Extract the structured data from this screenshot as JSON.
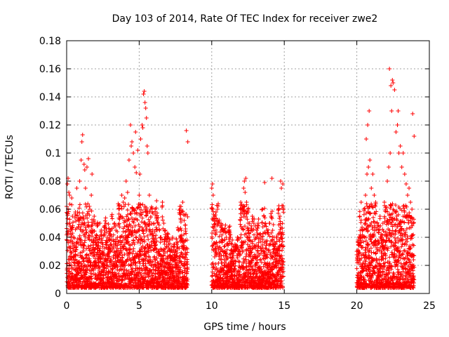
{
  "chart_data": {
    "type": "scatter",
    "title": "Day 103 of 2014, Rate Of TEC Index for receiver zwe2",
    "xlabel": "GPS time / hours",
    "ylabel": "ROTI / TECUs",
    "xlim": [
      0,
      25
    ],
    "ylim": [
      0,
      0.18
    ],
    "x_ticks": [
      "0",
      "5",
      "10",
      "15",
      "20",
      "25"
    ],
    "x_tick_values": [
      0,
      5,
      10,
      15,
      20,
      25
    ],
    "y_ticks": [
      "0",
      "0.02",
      "0.04",
      "0.06",
      "0.08",
      "0.1",
      "0.12",
      "0.14",
      "0.16",
      "0.18"
    ],
    "y_tick_values": [
      0,
      0.02,
      0.04,
      0.06,
      0.08,
      0.1,
      0.12,
      0.14,
      0.16,
      0.18
    ],
    "grid": true,
    "marker": "+",
    "color": "#ff0000",
    "series": [
      {
        "name": "zwe2",
        "x": [
          0.0,
          0.1,
          0.2,
          0.3,
          0.4,
          0.5,
          0.6,
          0.7,
          0.8,
          0.9,
          1.0,
          1.1,
          1.2,
          1.3,
          1.4,
          1.5,
          1.6,
          1.7,
          1.8,
          1.9,
          2.0,
          2.1,
          2.2,
          2.3,
          2.4,
          2.5,
          2.6,
          2.7,
          2.8,
          2.9,
          3.0,
          3.1,
          3.2,
          3.3,
          3.4,
          3.5,
          3.6,
          3.7,
          3.8,
          3.9,
          4.0,
          4.1,
          4.2,
          4.3,
          4.4,
          4.5,
          4.6,
          4.7,
          4.8,
          4.9,
          5.0,
          5.1,
          5.2,
          5.3,
          5.4,
          5.5,
          5.6,
          5.7,
          5.8,
          5.9,
          6.0,
          6.1,
          6.2,
          6.3,
          6.4,
          6.5,
          6.6,
          6.7,
          6.8,
          6.9,
          7.0,
          7.1,
          7.2,
          7.3,
          7.4,
          7.5,
          7.6,
          7.7,
          7.8,
          7.9,
          8.0,
          8.1,
          8.2,
          8.3,
          0.05,
          0.15,
          0.35,
          1.05,
          1.25,
          1.75,
          4.45,
          4.75,
          5.05,
          5.25,
          5.35,
          5.45,
          5.55,
          8.25,
          8.35,
          0.15,
          0.55,
          1.15,
          1.45,
          1.95,
          2.35,
          2.95,
          3.45,
          3.85,
          4.35,
          4.95,
          5.25,
          5.65,
          6.25,
          6.95,
          7.45,
          7.95,
          10.0,
          10.1,
          10.2,
          10.3,
          10.4,
          10.5,
          10.6,
          10.7,
          10.8,
          10.9,
          11.0,
          11.1,
          11.2,
          11.3,
          11.4,
          11.5,
          11.6,
          11.7,
          11.8,
          11.9,
          12.0,
          12.1,
          12.2,
          12.3,
          12.4,
          12.5,
          12.6,
          12.7,
          12.8,
          12.9,
          13.0,
          13.1,
          13.2,
          13.3,
          13.4,
          13.5,
          13.6,
          13.7,
          13.8,
          13.9,
          14.0,
          14.1,
          14.2,
          14.3,
          14.4,
          14.5,
          14.6,
          14.7,
          14.8,
          14.9,
          10.05,
          12.25,
          12.35,
          13.65,
          14.15,
          14.75,
          10.35,
          10.95,
          11.55,
          12.05,
          12.65,
          13.25,
          13.95,
          14.55,
          20.0,
          20.1,
          20.2,
          20.3,
          20.4,
          20.5,
          20.6,
          20.7,
          20.8,
          20.9,
          21.0,
          21.1,
          21.2,
          21.3,
          21.4,
          21.5,
          21.6,
          21.7,
          21.8,
          21.9,
          22.0,
          22.1,
          22.2,
          22.3,
          22.4,
          22.5,
          22.6,
          22.7,
          22.8,
          22.9,
          23.0,
          23.1,
          23.2,
          23.3,
          23.4,
          23.5,
          23.6,
          23.7,
          23.8,
          23.9,
          20.65,
          20.75,
          20.85,
          22.25,
          22.35,
          22.45,
          23.85,
          23.95,
          22.85,
          20.25,
          20.55,
          21.05,
          21.45,
          21.95,
          22.55,
          23.05,
          23.45,
          23.75
        ],
        "y": [
          0.062,
          0.082,
          0.07,
          0.045,
          0.055,
          0.04,
          0.058,
          0.075,
          0.052,
          0.08,
          0.095,
          0.113,
          0.092,
          0.075,
          0.09,
          0.096,
          0.06,
          0.07,
          0.045,
          0.055,
          0.04,
          0.048,
          0.036,
          0.05,
          0.042,
          0.035,
          0.045,
          0.05,
          0.04,
          0.046,
          0.042,
          0.055,
          0.038,
          0.05,
          0.045,
          0.04,
          0.06,
          0.055,
          0.07,
          0.065,
          0.068,
          0.08,
          0.072,
          0.095,
          0.12,
          0.108,
          0.1,
          0.09,
          0.086,
          0.102,
          0.07,
          0.11,
          0.12,
          0.142,
          0.136,
          0.125,
          0.1,
          0.07,
          0.06,
          0.058,
          0.05,
          0.06,
          0.066,
          0.05,
          0.045,
          0.04,
          0.065,
          0.05,
          0.045,
          0.042,
          0.04,
          0.038,
          0.03,
          0.04,
          0.035,
          0.03,
          0.035,
          0.045,
          0.062,
          0.058,
          0.065,
          0.052,
          0.046,
          0.038,
          0.078,
          0.072,
          0.068,
          0.108,
          0.088,
          0.085,
          0.105,
          0.115,
          0.085,
          0.118,
          0.144,
          0.132,
          0.105,
          0.116,
          0.108,
          0.008,
          0.01,
          0.012,
          0.009,
          0.011,
          0.008,
          0.01,
          0.012,
          0.009,
          0.011,
          0.008,
          0.01,
          0.012,
          0.009,
          0.011,
          0.008,
          0.01,
          0.075,
          0.07,
          0.055,
          0.058,
          0.06,
          0.05,
          0.048,
          0.045,
          0.044,
          0.046,
          0.04,
          0.035,
          0.045,
          0.04,
          0.035,
          0.03,
          0.035,
          0.032,
          0.038,
          0.03,
          0.065,
          0.06,
          0.075,
          0.072,
          0.065,
          0.06,
          0.05,
          0.045,
          0.055,
          0.05,
          0.048,
          0.045,
          0.05,
          0.042,
          0.04,
          0.06,
          0.055,
          0.05,
          0.045,
          0.042,
          0.05,
          0.055,
          0.045,
          0.04,
          0.035,
          0.04,
          0.06,
          0.055,
          0.075,
          0.078,
          0.078,
          0.08,
          0.082,
          0.079,
          0.082,
          0.08,
          0.008,
          0.006,
          0.01,
          0.009,
          0.007,
          0.01,
          0.008,
          0.009,
          0.03,
          0.035,
          0.055,
          0.065,
          0.045,
          0.06,
          0.07,
          0.085,
          0.09,
          0.095,
          0.075,
          0.085,
          0.07,
          0.065,
          0.05,
          0.045,
          0.055,
          0.04,
          0.05,
          0.065,
          0.06,
          0.08,
          0.09,
          0.1,
          0.13,
          0.15,
          0.145,
          0.115,
          0.12,
          0.1,
          0.105,
          0.09,
          0.1,
          0.085,
          0.078,
          0.07,
          0.075,
          0.065,
          0.06,
          0.05,
          0.11,
          0.12,
          0.13,
          0.16,
          0.148,
          0.152,
          0.128,
          0.112,
          0.13,
          0.004,
          0.006,
          0.005,
          0.008,
          0.006,
          0.007,
          0.005,
          0.006,
          0.008
        ]
      }
    ]
  }
}
